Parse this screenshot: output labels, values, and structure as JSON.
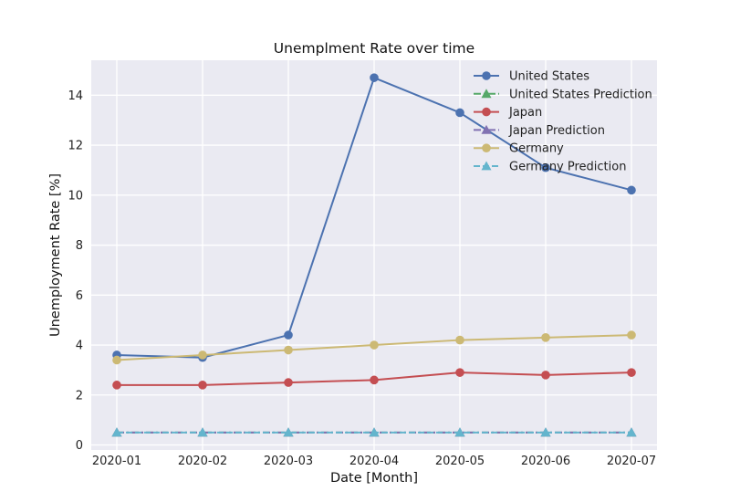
{
  "chart_data": {
    "type": "line",
    "title": "Unemplment Rate over time",
    "xlabel": "Date [Month]",
    "ylabel": "Unemployment Rate [%]",
    "categories": [
      "2020-01",
      "2020-02",
      "2020-03",
      "2020-04",
      "2020-05",
      "2020-06",
      "2020-07"
    ],
    "ylim": [
      -0.2,
      15.4
    ],
    "yticks": [
      0,
      2,
      4,
      6,
      8,
      10,
      12,
      14
    ],
    "grid": true,
    "legend_position": "top-right",
    "series": [
      {
        "name": "United States",
        "values": [
          3.6,
          3.5,
          4.4,
          14.7,
          13.3,
          11.1,
          10.2
        ],
        "color": "#4c72b0",
        "style": "solid",
        "marker": "circle"
      },
      {
        "name": "United States Prediction",
        "values": [
          0.5,
          0.5,
          0.5,
          0.5,
          0.5,
          0.5,
          0.5
        ],
        "color": "#55a868",
        "style": "dashdot",
        "marker": "triangle"
      },
      {
        "name": "Japan",
        "values": [
          2.4,
          2.4,
          2.5,
          2.6,
          2.9,
          2.8,
          2.9
        ],
        "color": "#c44e52",
        "style": "solid",
        "marker": "circle"
      },
      {
        "name": "Japan Prediction",
        "values": [
          0.5,
          0.5,
          0.5,
          0.5,
          0.5,
          0.5,
          0.5
        ],
        "color": "#8172b2",
        "style": "dashdot",
        "marker": "triangle"
      },
      {
        "name": "Germany",
        "values": [
          3.4,
          3.6,
          3.8,
          4.0,
          4.2,
          4.3,
          4.4
        ],
        "color": "#ccb974",
        "style": "solid",
        "marker": "circle"
      },
      {
        "name": "Germany Prediction",
        "values": [
          0.5,
          0.5,
          0.5,
          0.5,
          0.5,
          0.5,
          0.5
        ],
        "color": "#64b5cd",
        "style": "dashed",
        "marker": "triangle"
      }
    ]
  }
}
